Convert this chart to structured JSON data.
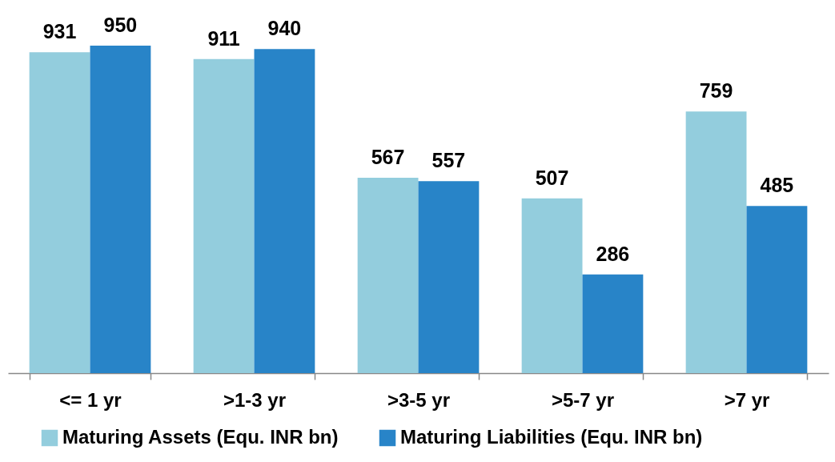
{
  "chart_data": {
    "type": "bar",
    "categories": [
      "<= 1 yr",
      ">1-3 yr",
      ">3-5 yr",
      ">5-7 yr",
      ">7 yr"
    ],
    "series": [
      {
        "name": "Maturing Assets (Equ. INR bn)",
        "color": "#93cddd",
        "values": [
          931,
          911,
          567,
          507,
          759
        ]
      },
      {
        "name": "Maturing Liabilities (Equ. INR bn)",
        "color": "#2884c8",
        "values": [
          950,
          940,
          557,
          286,
          485
        ]
      }
    ],
    "data_labels": true,
    "legend": "bottom"
  }
}
